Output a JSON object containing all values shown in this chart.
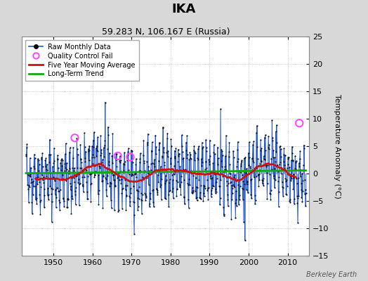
{
  "title": "IKA",
  "subtitle": "59.283 N, 106.167 E (Russia)",
  "ylabel": "Temperature Anomaly (°C)",
  "watermark": "Berkeley Earth",
  "year_start": 1943,
  "year_end": 2014,
  "ylim": [
    -15,
    25
  ],
  "yticks": [
    -15,
    -10,
    -5,
    0,
    5,
    10,
    15,
    20,
    25
  ],
  "xticks": [
    1950,
    1960,
    1970,
    1980,
    1990,
    2000,
    2010
  ],
  "bg_color": "#d8d8d8",
  "plot_bg_color": "#ffffff",
  "line_color": "#2255cc",
  "line_color_bar": "#7799ee",
  "dot_color": "#111111",
  "ma_color": "#cc1111",
  "trend_color": "#11aa11",
  "qc_color": "#ff44ff",
  "seed": 42,
  "qc_fail_points": [
    {
      "year": 1955.5,
      "value": 6.5
    },
    {
      "year": 1966.5,
      "value": 3.2
    },
    {
      "year": 1969.7,
      "value": 3.0
    },
    {
      "year": 2013.0,
      "value": 9.2
    }
  ]
}
